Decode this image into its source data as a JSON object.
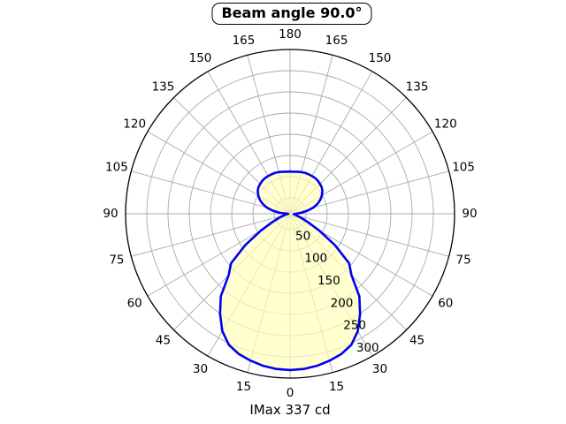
{
  "chart_data": {
    "type": "polar-line",
    "title": "Beam angle 90.0°",
    "footer": "IMax 337 cd",
    "imax_cd": 337,
    "beam_angle_deg": 90.0,
    "units": "cd",
    "orientation": "0-degrees-at-bottom",
    "theta_tick_labels": [
      0,
      15,
      30,
      45,
      60,
      75,
      90,
      105,
      120,
      135,
      150,
      165,
      180
    ],
    "r_tick_labels": [
      50,
      100,
      150,
      200,
      250,
      300
    ],
    "r_max": 350,
    "grid": true,
    "series": [
      {
        "name": "luminous-intensity",
        "angles_deg": [
          0,
          5,
          10,
          15,
          20,
          25,
          30,
          35,
          40,
          45,
          50,
          55,
          60,
          65,
          70,
          75,
          80,
          85,
          90,
          95,
          100,
          105,
          110,
          115,
          120,
          125,
          130,
          135,
          140,
          145,
          150,
          155,
          160,
          165,
          170,
          175,
          180
        ],
        "right_cd": [
          337,
          336,
          333,
          328,
          322,
          312,
          292,
          263,
          232,
          187,
          166,
          118,
          73,
          42,
          25,
          15,
          10,
          8,
          13,
          24,
          38,
          52,
          63,
          72,
          79,
          85,
          89,
          91,
          93,
          94,
          94,
          94,
          94,
          93,
          92,
          91,
          91
        ],
        "left_cd": [
          337,
          336,
          333,
          328,
          322,
          312,
          292,
          263,
          232,
          187,
          166,
          118,
          73,
          42,
          25,
          15,
          9,
          6,
          4,
          22,
          38,
          52,
          63,
          72,
          79,
          85,
          89,
          91,
          93,
          94,
          94,
          94,
          94,
          93,
          92,
          91,
          91
        ]
      }
    ],
    "colors": {
      "curve": "#0000ee",
      "fill": "#ffffbb",
      "grid": "#aaaaaa",
      "outer_ring": "#000000",
      "text": "#000000",
      "background": "#ffffff"
    }
  }
}
